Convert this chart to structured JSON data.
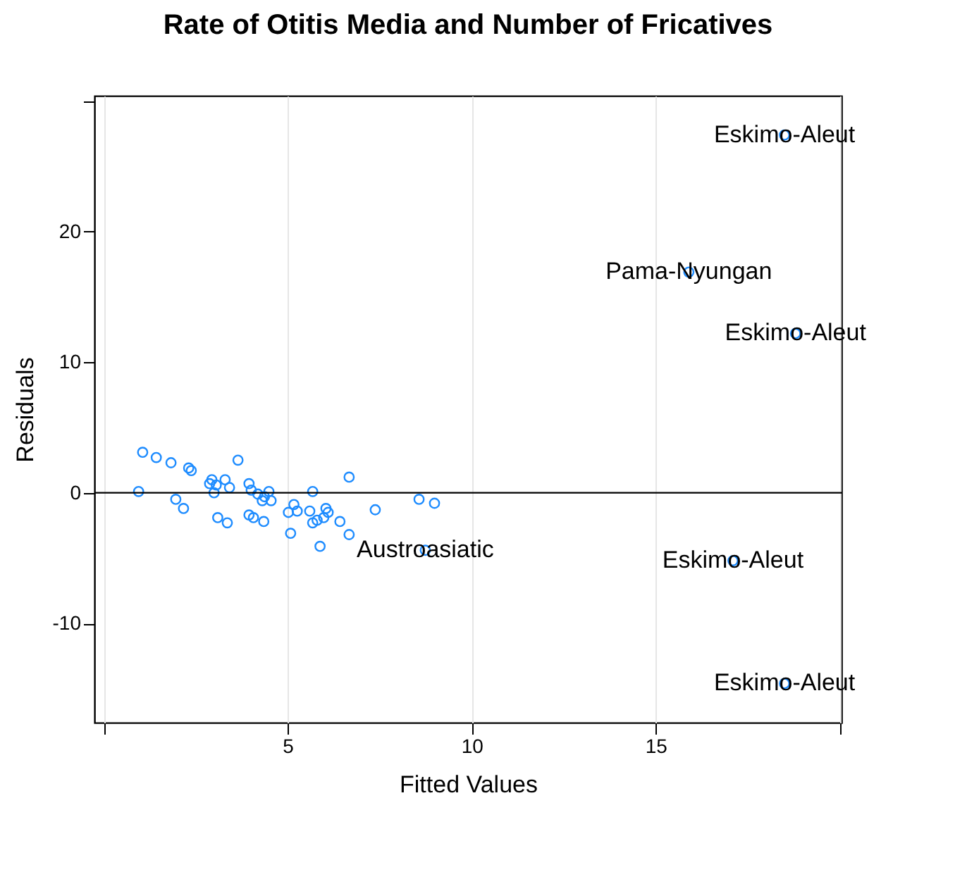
{
  "chart_data": {
    "type": "scatter",
    "title": "Rate of Otitis Media and Number of Fricatives",
    "xlabel": "Fitted Values",
    "ylabel": "Residuals",
    "x": [
      1.06,
      1.43,
      1.83,
      2.31,
      2.38,
      3.65,
      0.95,
      1.96,
      2.17,
      2.94,
      3.06,
      2.88,
      3.3,
      3.42,
      3.0,
      3.1,
      3.36,
      3.95,
      4.01,
      4.19,
      4.37,
      4.49,
      4.55,
      4.31,
      3.95,
      4.07,
      4.35,
      5.68,
      6.67,
      5.02,
      5.17,
      5.26,
      5.6,
      5.68,
      6.04,
      6.1,
      5.98,
      5.8,
      6.42,
      6.67,
      5.08,
      5.88,
      7.38,
      8.57,
      8.99,
      8.74,
      18.5,
      15.9,
      18.8,
      17.1,
      18.5
    ],
    "series": [
      {
        "color": "#1e8cff",
        "values": [
          3.1,
          2.7,
          2.3,
          1.9,
          1.7,
          2.5,
          0.1,
          -0.5,
          -1.2,
          1.0,
          0.6,
          0.7,
          1.0,
          0.4,
          0.0,
          -1.9,
          -2.3,
          0.7,
          0.2,
          -0.1,
          -0.3,
          0.1,
          -0.6,
          -0.6,
          -1.7,
          -1.9,
          -2.2,
          0.1,
          1.2,
          -1.5,
          -0.9,
          -1.4,
          -1.4,
          -2.3,
          -1.2,
          -1.5,
          -1.9,
          -2.1,
          -2.2,
          -3.2,
          -3.1,
          -4.1,
          -1.3,
          -0.5,
          -0.8,
          -4.4,
          27.4,
          16.9,
          12.2,
          -5.2,
          -14.6
        ]
      }
    ],
    "annotations": [
      {
        "text": "Austroasiatic",
        "x": 8.74,
        "y": -4.4
      },
      {
        "text": "Eskimo-Aleut",
        "x": 18.5,
        "y": 27.4
      },
      {
        "text": "Pama-Nyungan",
        "x": 15.9,
        "y": 16.9
      },
      {
        "text": "Eskimo-Aleut",
        "x": 18.8,
        "y": 12.2
      },
      {
        "text": "Eskimo-Aleut",
        "x": 17.1,
        "y": -5.2
      },
      {
        "text": "Eskimo-Aleut",
        "x": 18.5,
        "y": -14.6
      }
    ],
    "ref_lines": [
      {
        "axis": "y",
        "value": 0,
        "color": "#000000"
      }
    ],
    "xlim": [
      -0.25,
      20.05
    ],
    "ylim": [
      -17.6,
      30.4
    ],
    "xticks": [
      {
        "value": 0,
        "label": null
      },
      5,
      10,
      15,
      {
        "value": 20,
        "label": null
      }
    ],
    "yticks": [
      -10,
      0,
      10,
      20,
      {
        "value": 30,
        "label": null
      }
    ],
    "grid": "x",
    "marker": "circle"
  }
}
